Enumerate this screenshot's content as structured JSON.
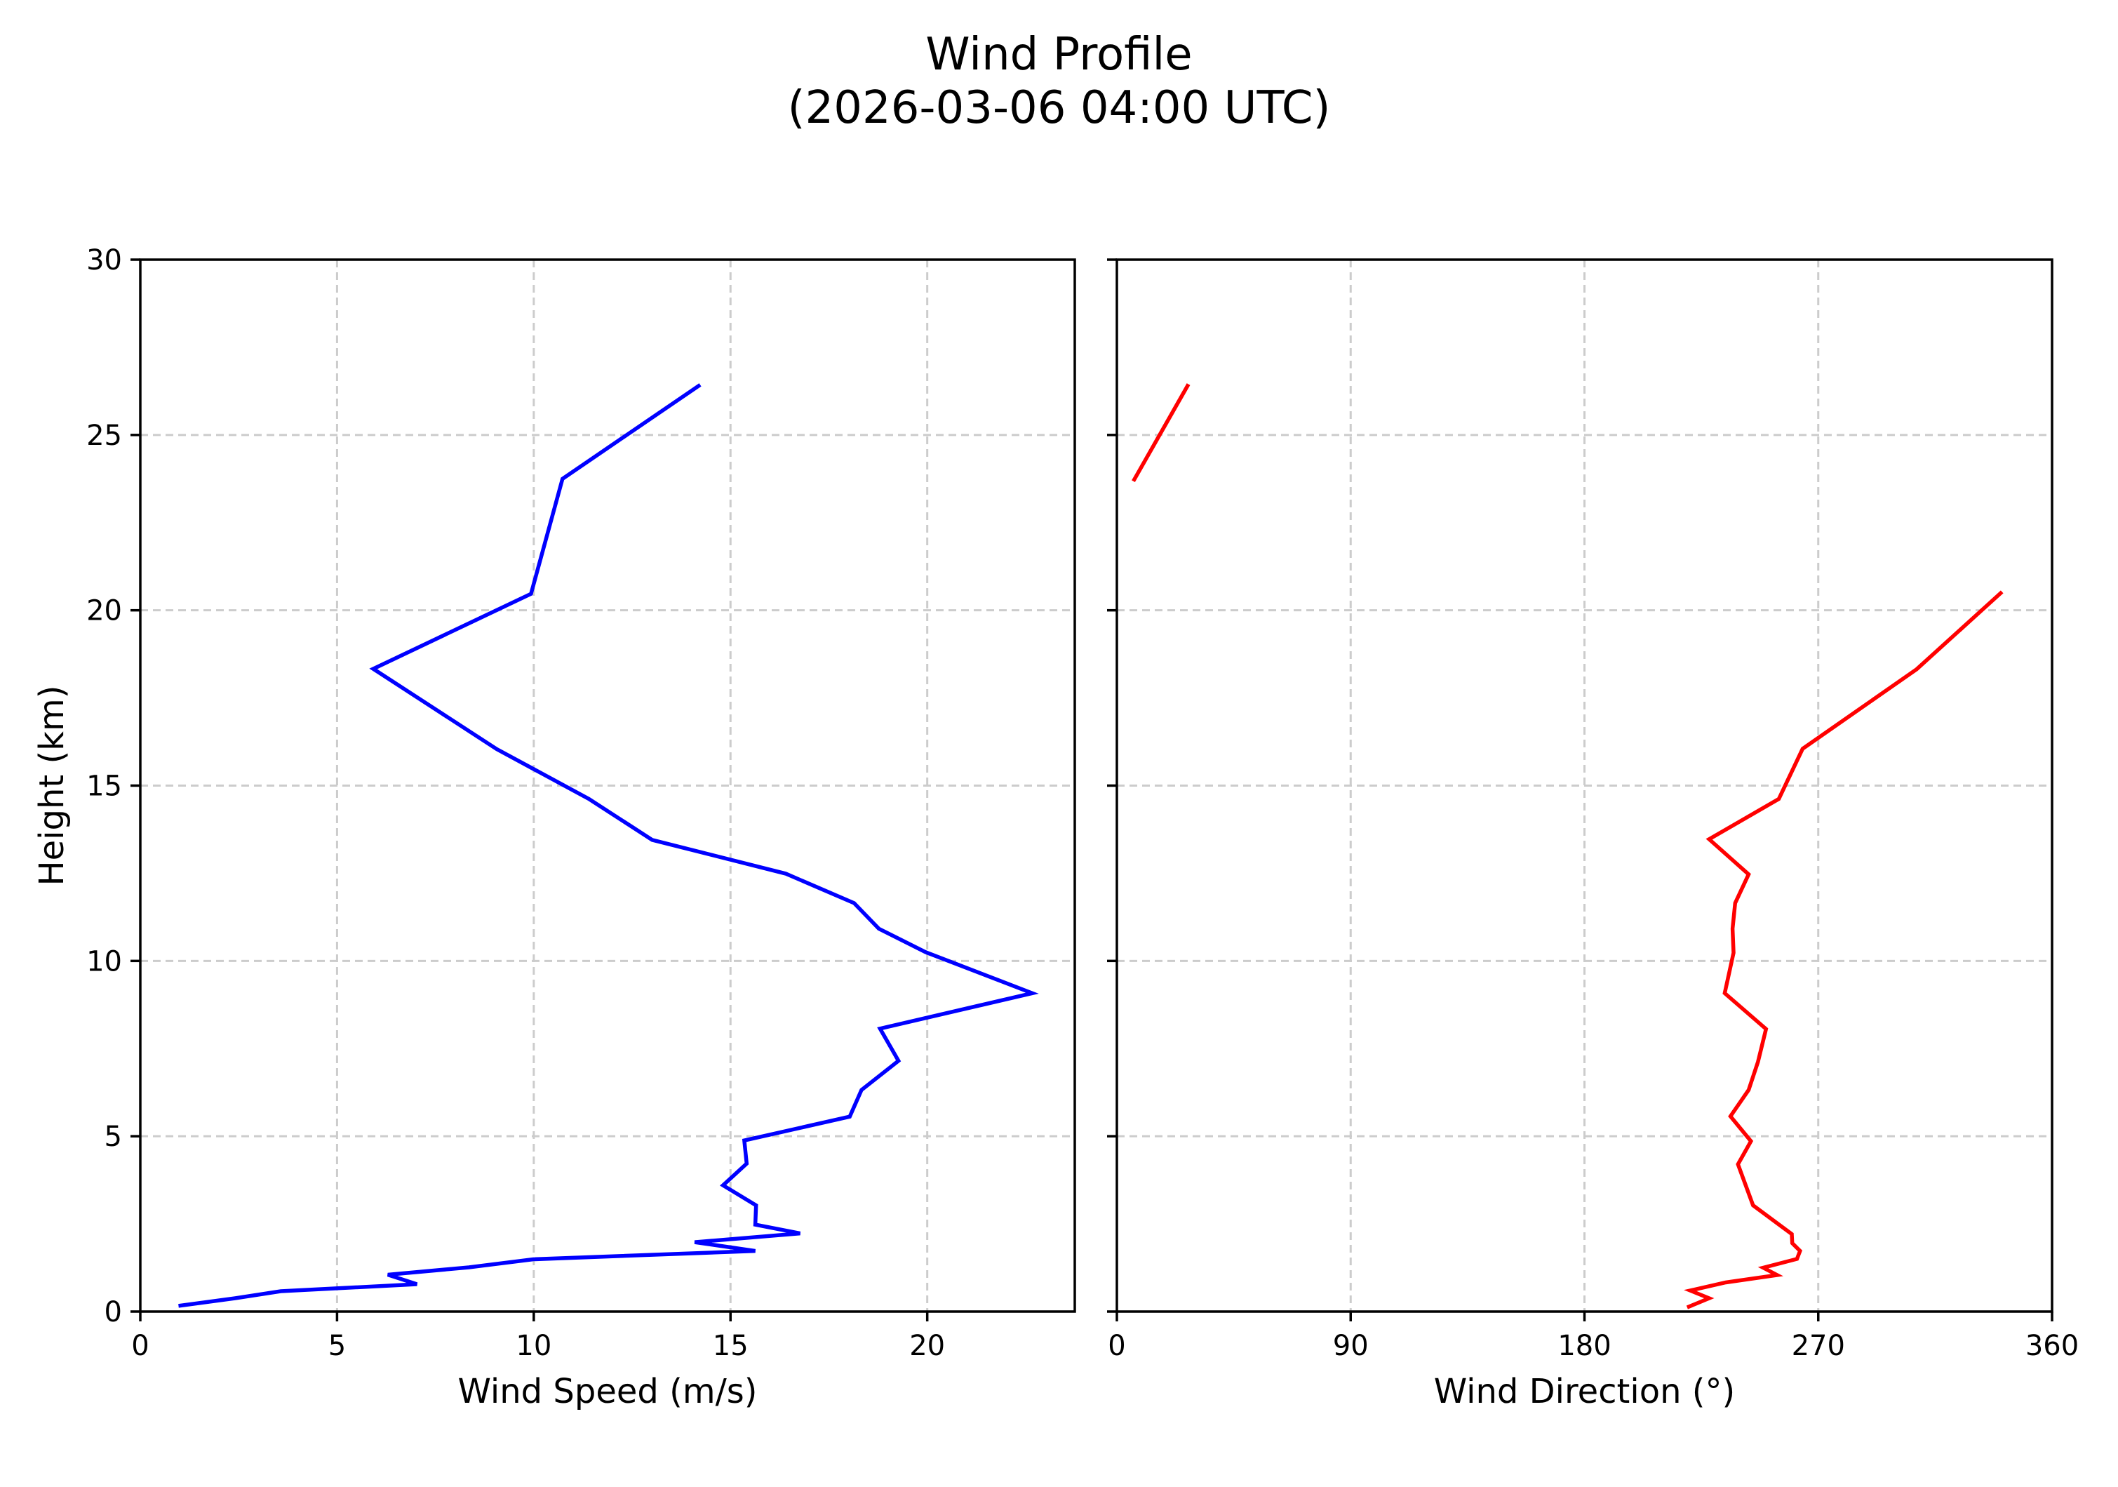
{
  "figure": {
    "title_line1": "Wind Profile",
    "title_line2": "(2026-03-06 04:00 UTC)"
  },
  "colors": {
    "speed_line": "#0000ff",
    "direction_line": "#ff0000",
    "grid": "#cccccc",
    "axes": "#000000"
  },
  "chart_data": [
    {
      "type": "line",
      "title": "Wind Profile (2026-03-06 04:00 UTC)",
      "panel": "left",
      "xlabel": "Wind Speed (m/s)",
      "ylabel": "Height (km)",
      "xlim": [
        0,
        23.75
      ],
      "ylim": [
        0,
        30
      ],
      "xticks": [
        0,
        5,
        10,
        15,
        20
      ],
      "yticks": [
        0,
        5,
        10,
        15,
        20,
        25,
        30
      ],
      "grid": true,
      "grid_style": "dashed",
      "series": [
        {
          "name": "Wind Speed",
          "color": "#0000ff",
          "segments": [
            [
              {
                "x": 1.02,
                "y": 0.17
              },
              {
                "x": 2.41,
                "y": 0.38
              },
              {
                "x": 3.57,
                "y": 0.58
              },
              {
                "x": 7.03,
                "y": 0.78
              },
              {
                "x": 6.29,
                "y": 1.05
              },
              {
                "x": 8.35,
                "y": 1.26
              },
              {
                "x": 9.99,
                "y": 1.49
              },
              {
                "x": 15.63,
                "y": 1.73
              },
              {
                "x": 14.09,
                "y": 1.98
              },
              {
                "x": 16.77,
                "y": 2.23
              },
              {
                "x": 15.63,
                "y": 2.48
              },
              {
                "x": 15.65,
                "y": 3.03
              },
              {
                "x": 14.81,
                "y": 3.6
              },
              {
                "x": 15.41,
                "y": 4.22
              },
              {
                "x": 15.35,
                "y": 4.88
              },
              {
                "x": 18.03,
                "y": 5.56
              },
              {
                "x": 18.33,
                "y": 6.32
              },
              {
                "x": 19.27,
                "y": 7.15
              },
              {
                "x": 18.8,
                "y": 8.07
              },
              {
                "x": 22.67,
                "y": 9.08
              },
              {
                "x": 19.96,
                "y": 10.25
              },
              {
                "x": 18.77,
                "y": 10.92
              },
              {
                "x": 18.14,
                "y": 11.65
              },
              {
                "x": 16.4,
                "y": 12.49
              },
              {
                "x": 13.01,
                "y": 13.45
              },
              {
                "x": 11.4,
                "y": 14.62
              },
              {
                "x": 9.06,
                "y": 16.04
              },
              {
                "x": 5.92,
                "y": 18.33
              },
              {
                "x": 9.93,
                "y": 20.47
              },
              {
                "x": 10.73,
                "y": 23.75
              },
              {
                "x": 14.19,
                "y": 26.4
              }
            ]
          ]
        }
      ]
    },
    {
      "type": "line",
      "title": "Wind Profile (2026-03-06 04:00 UTC)",
      "panel": "right",
      "xlabel": "Wind Direction (°)",
      "ylabel": "",
      "xlim": [
        0,
        360
      ],
      "ylim": [
        0,
        30
      ],
      "xticks": [
        0,
        90,
        180,
        270,
        360
      ],
      "yticks": [
        0,
        5,
        10,
        15,
        20,
        25,
        30
      ],
      "show_ytick_labels": false,
      "grid": true,
      "grid_style": "dashed",
      "series": [
        {
          "name": "Wind Direction",
          "color": "#ff0000",
          "segments": [
            [
              {
                "x": 220.2,
                "y": 0.14
              },
              {
                "x": 228.0,
                "y": 0.38
              },
              {
                "x": 220.7,
                "y": 0.6
              },
              {
                "x": 234.4,
                "y": 0.83
              },
              {
                "x": 254.2,
                "y": 1.04
              },
              {
                "x": 248.8,
                "y": 1.25
              },
              {
                "x": 261.8,
                "y": 1.5
              },
              {
                "x": 263.0,
                "y": 1.73
              },
              {
                "x": 260.0,
                "y": 1.95
              },
              {
                "x": 259.8,
                "y": 2.21
              },
              {
                "x": 244.9,
                "y": 3.03
              },
              {
                "x": 239.1,
                "y": 4.2
              },
              {
                "x": 244.1,
                "y": 4.86
              },
              {
                "x": 236.2,
                "y": 5.57
              },
              {
                "x": 243.2,
                "y": 6.32
              },
              {
                "x": 246.8,
                "y": 7.12
              },
              {
                "x": 249.9,
                "y": 8.06
              },
              {
                "x": 234.0,
                "y": 9.08
              },
              {
                "x": 237.4,
                "y": 10.23
              },
              {
                "x": 237.0,
                "y": 10.92
              },
              {
                "x": 238.0,
                "y": 11.65
              },
              {
                "x": 243.2,
                "y": 12.47
              },
              {
                "x": 228.0,
                "y": 13.47
              },
              {
                "x": 254.8,
                "y": 14.62
              },
              {
                "x": 264.0,
                "y": 16.05
              },
              {
                "x": 307.9,
                "y": 18.32
              },
              {
                "x": 340.2,
                "y": 20.49
              }
            ],
            [
              {
                "x": 6.7,
                "y": 23.73
              },
              {
                "x": 27.2,
                "y": 26.4
              }
            ]
          ]
        }
      ]
    }
  ]
}
